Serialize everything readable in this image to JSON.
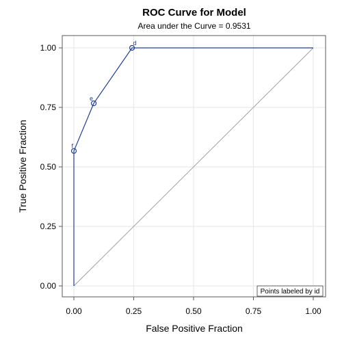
{
  "chart_data": {
    "type": "line",
    "title": "ROC Curve for Model",
    "subtitle": "Area under the Curve = 0.9531",
    "xlabel": "False Positive Fraction",
    "ylabel": "True Positive Fraction",
    "xlim": [
      0,
      1
    ],
    "ylim": [
      0,
      1
    ],
    "xticks": [
      "0.00",
      "0.25",
      "0.50",
      "0.75",
      "1.00"
    ],
    "yticks": [
      "0.00",
      "0.25",
      "0.50",
      "0.75",
      "1.00"
    ],
    "grid": true,
    "roc_points": [
      {
        "x": 0.0,
        "y": 0.0,
        "marker": false,
        "label": ""
      },
      {
        "x": 0.0,
        "y": 0.567,
        "marker": true,
        "label": "f"
      },
      {
        "x": 0.083,
        "y": 0.767,
        "marker": true,
        "label": "e"
      },
      {
        "x": 0.243,
        "y": 1.0,
        "marker": true,
        "label": "d"
      },
      {
        "x": 1.0,
        "y": 1.0,
        "marker": false,
        "label": ""
      }
    ],
    "reference_line": [
      [
        0,
        0
      ],
      [
        1,
        1
      ]
    ],
    "legend_note": "Points labeled by id",
    "legend_position": "bottom-right",
    "colors": {
      "curve": "#1f3f8f",
      "reference": "#a0a0a0",
      "grid": "#e6e6e6",
      "frame": "#5a5a5a"
    }
  }
}
